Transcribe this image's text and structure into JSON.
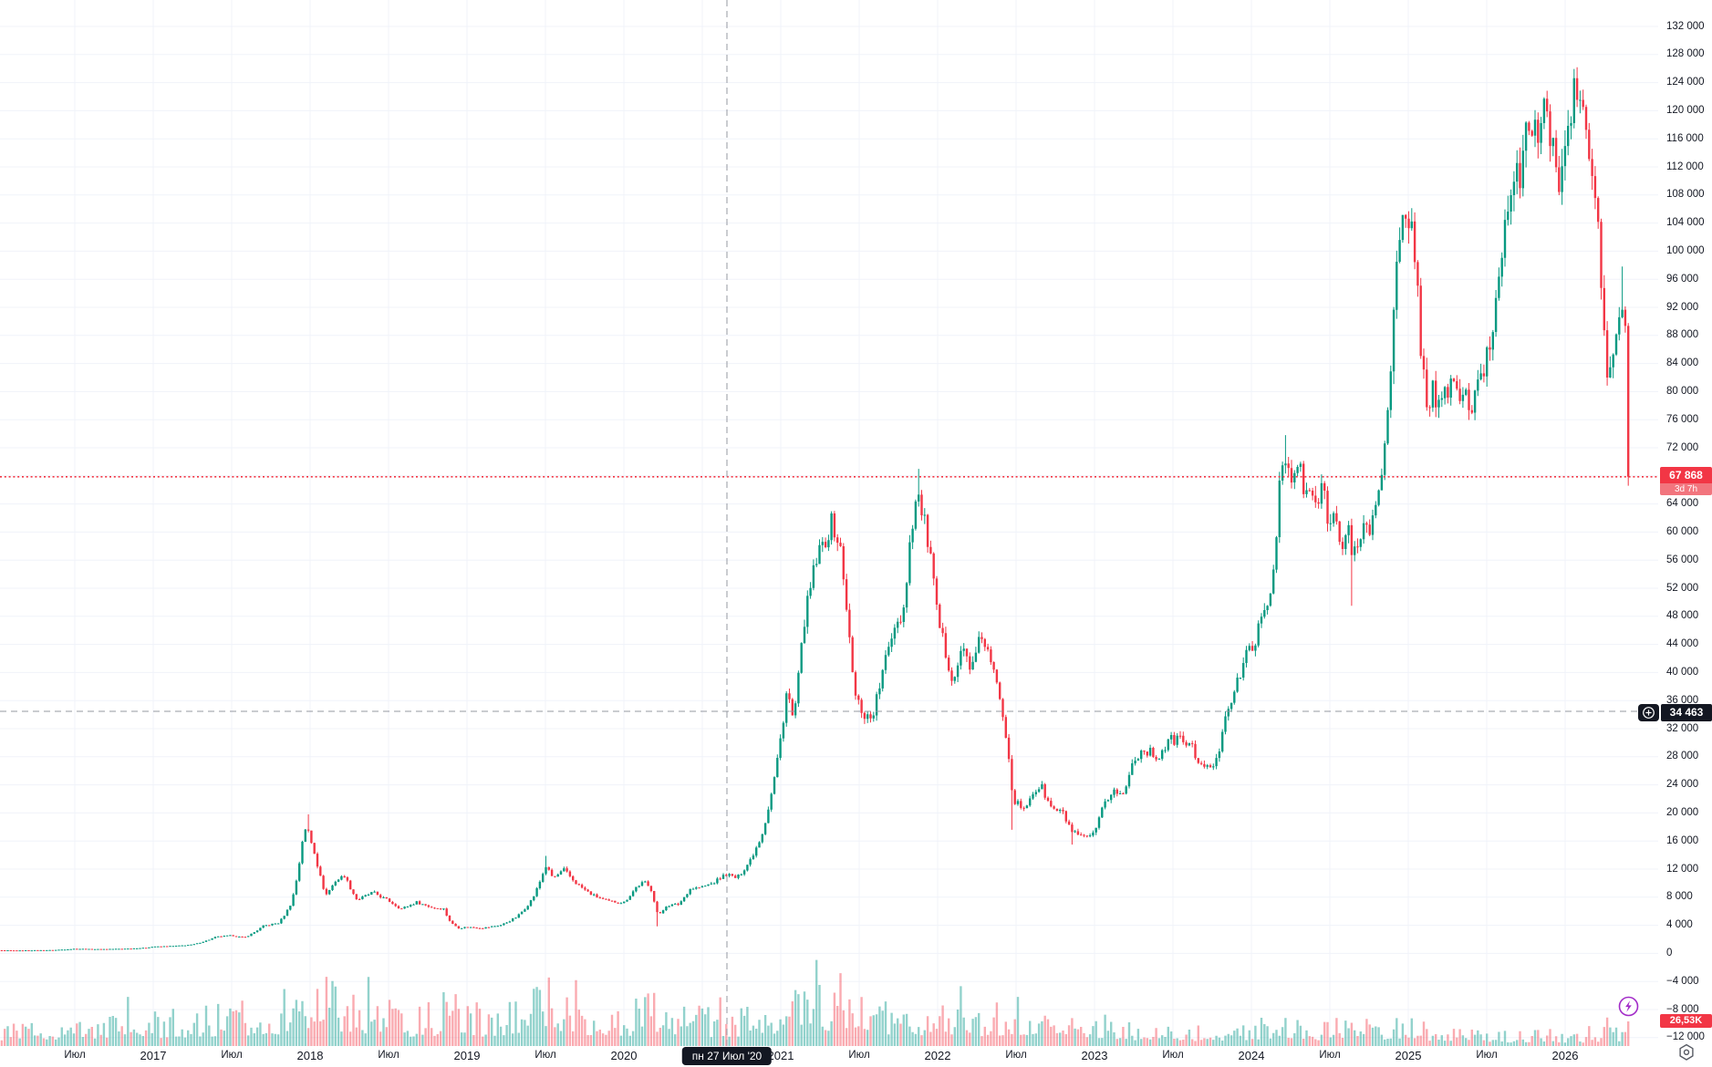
{
  "chart_data": {
    "type": "candlestick",
    "timeframe": "weekly",
    "price_axis": {
      "min": -12000,
      "max": 132000,
      "step": 4000,
      "tick_labels": [
        "132 000",
        "128 000",
        "124 000",
        "120 000",
        "116 000",
        "112 000",
        "108 000",
        "104 000",
        "100 000",
        "96 000",
        "92 000",
        "88 000",
        "84 000",
        "80 000",
        "76 000",
        "72 000",
        "68 000",
        "64 000",
        "60 000",
        "56 000",
        "52 000",
        "48 000",
        "44 000",
        "40 000",
        "36 000",
        "32 000",
        "28 000",
        "24 000",
        "20 000",
        "16 000",
        "12 000",
        "8 000",
        "4 000",
        "0",
        "−4 000",
        "−8 000",
        "−12 000"
      ]
    },
    "time_axis": {
      "ticks": [
        {
          "label": "Июл",
          "unit": "month"
        },
        {
          "label": "2017",
          "unit": "year"
        },
        {
          "label": "Июл",
          "unit": "month"
        },
        {
          "label": "2018",
          "unit": "year"
        },
        {
          "label": "Июл",
          "unit": "month"
        },
        {
          "label": "2019",
          "unit": "year"
        },
        {
          "label": "Июл",
          "unit": "month"
        },
        {
          "label": "2020",
          "unit": "year"
        },
        {
          "label": "Июл",
          "unit": "month"
        },
        {
          "label": "2021",
          "unit": "year"
        },
        {
          "label": "Июл",
          "unit": "month"
        },
        {
          "label": "2022",
          "unit": "year"
        },
        {
          "label": "Июл",
          "unit": "month"
        },
        {
          "label": "2023",
          "unit": "year"
        },
        {
          "label": "Июл",
          "unit": "month"
        },
        {
          "label": "2024",
          "unit": "year"
        },
        {
          "label": "Июл",
          "unit": "month"
        },
        {
          "label": "2025",
          "unit": "year"
        },
        {
          "label": "Июл",
          "unit": "month"
        },
        {
          "label": "2026",
          "unit": "year"
        }
      ]
    },
    "last_price": {
      "raw": 67868,
      "display": "67 868",
      "bar_time_remaining": "3d 7h",
      "direction": "down"
    },
    "crosshair": {
      "date_label": "пн 27 Июл '20",
      "price_raw": 34463,
      "price_display": "34 463"
    },
    "volume": {
      "last_display": "26,53K"
    },
    "price_path_waypoints": [
      [
        2015.9,
        435
      ],
      [
        2016.0,
        432
      ],
      [
        2016.15,
        425
      ],
      [
        2016.35,
        455
      ],
      [
        2016.5,
        655
      ],
      [
        2016.62,
        610
      ],
      [
        2016.8,
        650
      ],
      [
        2016.95,
        790
      ],
      [
        2017.0,
        965
      ],
      [
        2017.15,
        1080
      ],
      [
        2017.25,
        1250
      ],
      [
        2017.4,
        2350
      ],
      [
        2017.5,
        2550
      ],
      [
        2017.58,
        2250
      ],
      [
        2017.7,
        3900
      ],
      [
        2017.8,
        4350
      ],
      [
        2017.88,
        7200
      ],
      [
        2017.95,
        16000
      ],
      [
        2017.98,
        18200
      ],
      [
        2018.03,
        14300
      ],
      [
        2018.1,
        8300
      ],
      [
        2018.16,
        10300
      ],
      [
        2018.22,
        11100
      ],
      [
        2018.3,
        7600
      ],
      [
        2018.4,
        8700
      ],
      [
        2018.5,
        7500
      ],
      [
        2018.58,
        6350
      ],
      [
        2018.68,
        7300
      ],
      [
        2018.78,
        6500
      ],
      [
        2018.85,
        6400
      ],
      [
        2018.9,
        4300
      ],
      [
        2018.95,
        3600
      ],
      [
        2019.0,
        3750
      ],
      [
        2019.1,
        3620
      ],
      [
        2019.22,
        4050
      ],
      [
        2019.32,
        5250
      ],
      [
        2019.42,
        7900
      ],
      [
        2019.5,
        12500
      ],
      [
        2019.55,
        10700
      ],
      [
        2019.62,
        11900
      ],
      [
        2019.7,
        9900
      ],
      [
        2019.8,
        8300
      ],
      [
        2019.9,
        7400
      ],
      [
        2020.0,
        7250
      ],
      [
        2020.08,
        9500
      ],
      [
        2020.13,
        10200
      ],
      [
        2020.18,
        8900
      ],
      [
        2020.22,
        5300
      ],
      [
        2020.27,
        6800
      ],
      [
        2020.35,
        7000
      ],
      [
        2020.42,
        9200
      ],
      [
        2020.5,
        9450
      ],
      [
        2020.57,
        10050
      ],
      [
        2020.65,
        11300
      ],
      [
        2020.72,
        10700
      ],
      [
        2020.8,
        13100
      ],
      [
        2020.88,
        17000
      ],
      [
        2020.95,
        23800
      ],
      [
        2021.0,
        30800
      ],
      [
        2021.04,
        37800
      ],
      [
        2021.08,
        33000
      ],
      [
        2021.15,
        47500
      ],
      [
        2021.22,
        55500
      ],
      [
        2021.28,
        58800
      ],
      [
        2021.33,
        61500
      ],
      [
        2021.38,
        57500
      ],
      [
        2021.42,
        49500
      ],
      [
        2021.47,
        37000
      ],
      [
        2021.53,
        34000
      ],
      [
        2021.58,
        33500
      ],
      [
        2021.65,
        40000
      ],
      [
        2021.72,
        46800
      ],
      [
        2021.78,
        48500
      ],
      [
        2021.83,
        60500
      ],
      [
        2021.87,
        65500
      ],
      [
        2021.9,
        63000
      ],
      [
        2021.95,
        57500
      ],
      [
        2022.0,
        47500
      ],
      [
        2022.05,
        43000
      ],
      [
        2022.1,
        39000
      ],
      [
        2022.16,
        43500
      ],
      [
        2022.22,
        40500
      ],
      [
        2022.28,
        45500
      ],
      [
        2022.33,
        42000
      ],
      [
        2022.4,
        36500
      ],
      [
        2022.45,
        29500
      ],
      [
        2022.48,
        22000
      ],
      [
        2022.55,
        20300
      ],
      [
        2022.6,
        22800
      ],
      [
        2022.66,
        23800
      ],
      [
        2022.72,
        20800
      ],
      [
        2022.8,
        19900
      ],
      [
        2022.86,
        17200
      ],
      [
        2022.92,
        16400
      ],
      [
        2023.0,
        16900
      ],
      [
        2023.06,
        21300
      ],
      [
        2023.12,
        23300
      ],
      [
        2023.18,
        22400
      ],
      [
        2023.25,
        27800
      ],
      [
        2023.32,
        29100
      ],
      [
        2023.4,
        27900
      ],
      [
        2023.48,
        30300
      ],
      [
        2023.55,
        30600
      ],
      [
        2023.62,
        29300
      ],
      [
        2023.7,
        26100
      ],
      [
        2023.78,
        27300
      ],
      [
        2023.83,
        34200
      ],
      [
        2023.9,
        37600
      ],
      [
        2023.96,
        42200
      ],
      [
        2024.0,
        43600
      ],
      [
        2024.06,
        46800
      ],
      [
        2024.13,
        52000
      ],
      [
        2024.18,
        67500
      ],
      [
        2024.22,
        70000
      ],
      [
        2024.26,
        66500
      ],
      [
        2024.3,
        70500
      ],
      [
        2024.34,
        64500
      ],
      [
        2024.38,
        66000
      ],
      [
        2024.42,
        63500
      ],
      [
        2024.46,
        66500
      ],
      [
        2024.5,
        60500
      ],
      [
        2024.54,
        63500
      ],
      [
        2024.58,
        57500
      ],
      [
        2024.62,
        60500
      ],
      [
        2024.64,
        55500
      ],
      [
        2024.68,
        58800
      ],
      [
        2024.72,
        61200
      ],
      [
        2024.76,
        60200
      ],
      [
        2024.8,
        64200
      ],
      [
        2024.83,
        68800
      ],
      [
        2024.86,
        75800
      ],
      [
        2024.9,
        88500
      ],
      [
        2024.93,
        98000
      ],
      [
        2024.96,
        104500
      ],
      [
        2025.0,
        101500
      ],
      [
        2025.03,
        104800
      ],
      [
        2025.06,
        94000
      ],
      [
        2025.09,
        83500
      ],
      [
        2025.12,
        78200
      ],
      [
        2025.16,
        80800
      ],
      [
        2025.2,
        76900
      ],
      [
        2025.24,
        79600
      ],
      [
        2025.28,
        82600
      ],
      [
        2025.32,
        78600
      ],
      [
        2025.36,
        80200
      ],
      [
        2025.4,
        77200
      ],
      [
        2025.44,
        79800
      ],
      [
        2025.48,
        83200
      ],
      [
        2025.52,
        86800
      ],
      [
        2025.56,
        92800
      ],
      [
        2025.6,
        101500
      ],
      [
        2025.64,
        108800
      ],
      [
        2025.68,
        112200
      ],
      [
        2025.71,
        109200
      ],
      [
        2025.74,
        113800
      ],
      [
        2025.77,
        118600
      ],
      [
        2025.8,
        119200
      ],
      [
        2025.83,
        116200
      ],
      [
        2025.86,
        118800
      ],
      [
        2025.89,
        119600
      ],
      [
        2025.92,
        113800
      ],
      [
        2025.95,
        110200
      ],
      [
        2025.98,
        112800
      ],
      [
        2026.02,
        116800
      ],
      [
        2026.05,
        121200
      ],
      [
        2026.08,
        123800
      ],
      [
        2026.11,
        120200
      ],
      [
        2026.14,
        115200
      ],
      [
        2026.17,
        110800
      ],
      [
        2026.2,
        106200
      ],
      [
        2026.23,
        96500
      ],
      [
        2026.25,
        86500
      ],
      [
        2026.27,
        81800
      ],
      [
        2026.3,
        84800
      ],
      [
        2026.33,
        88200
      ],
      [
        2026.36,
        91800
      ],
      [
        2026.38,
        89800
      ],
      [
        2026.4,
        86200
      ],
      [
        2026.42,
        67868
      ]
    ],
    "wick_overrides": [
      {
        "t": 2017.98,
        "high": 19800
      },
      {
        "t": 2019.5,
        "high": 13880
      },
      {
        "t": 2020.22,
        "low": 3850
      },
      {
        "t": 2021.87,
        "high": 69000
      },
      {
        "t": 2022.48,
        "low": 17600
      },
      {
        "t": 2022.86,
        "low": 15500
      },
      {
        "t": 2024.22,
        "high": 73800
      },
      {
        "t": 2024.64,
        "low": 49500
      },
      {
        "t": 2026.08,
        "high": 126200
      },
      {
        "t": 2026.36,
        "high": 97800
      },
      {
        "t": 2026.42,
        "low": 66600
      }
    ],
    "volume_envelope": [
      [
        2015.9,
        26
      ],
      [
        2016.3,
        30
      ],
      [
        2016.6,
        34
      ],
      [
        2016.9,
        38
      ],
      [
        2017.2,
        42
      ],
      [
        2017.5,
        48
      ],
      [
        2017.8,
        58
      ],
      [
        2017.95,
        80
      ],
      [
        2018.05,
        92
      ],
      [
        2018.2,
        72
      ],
      [
        2018.4,
        60
      ],
      [
        2018.6,
        46
      ],
      [
        2018.85,
        50
      ],
      [
        2018.95,
        66
      ],
      [
        2019.1,
        44
      ],
      [
        2019.35,
        56
      ],
      [
        2019.5,
        80
      ],
      [
        2019.7,
        58
      ],
      [
        2019.9,
        46
      ],
      [
        2020.1,
        50
      ],
      [
        2020.22,
        72
      ],
      [
        2020.4,
        48
      ],
      [
        2020.6,
        44
      ],
      [
        2020.8,
        48
      ],
      [
        2020.95,
        60
      ],
      [
        2021.05,
        72
      ],
      [
        2021.2,
        64
      ],
      [
        2021.4,
        86
      ],
      [
        2021.5,
        94
      ],
      [
        2021.6,
        60
      ],
      [
        2021.75,
        48
      ],
      [
        2021.9,
        54
      ],
      [
        2022.1,
        46
      ],
      [
        2022.3,
        42
      ],
      [
        2022.48,
        60
      ],
      [
        2022.6,
        44
      ],
      [
        2022.75,
        38
      ],
      [
        2022.87,
        54
      ],
      [
        2023.0,
        38
      ],
      [
        2023.2,
        30
      ],
      [
        2023.5,
        24
      ],
      [
        2023.8,
        26
      ],
      [
        2024.0,
        30
      ],
      [
        2024.2,
        42
      ],
      [
        2024.4,
        28
      ],
      [
        2024.64,
        38
      ],
      [
        2024.8,
        24
      ],
      [
        2024.95,
        34
      ],
      [
        2025.1,
        27
      ],
      [
        2025.3,
        19
      ],
      [
        2025.6,
        17
      ],
      [
        2025.9,
        19
      ],
      [
        2026.1,
        15
      ],
      [
        2026.25,
        23
      ],
      [
        2026.35,
        20
      ],
      [
        2026.42,
        27
      ]
    ],
    "colors": {
      "up": "#089981",
      "down": "#F23645",
      "volume_up": "rgba(38,166,154,0.5)",
      "volume_down": "rgba(242,54,69,0.42)",
      "grid": "#F0F3FA",
      "axis_text": "#131722",
      "badge_dark": "#131722",
      "last_price_badge": "#F23645",
      "countdown_bg": "#F2757E",
      "crosshair": "#9598A1",
      "accent_purple": "#A22BC8"
    }
  },
  "icons": {
    "add_alert_plus": "circled-plus",
    "quick_trade": "lightning-bolt",
    "axis_settings": "gear"
  }
}
